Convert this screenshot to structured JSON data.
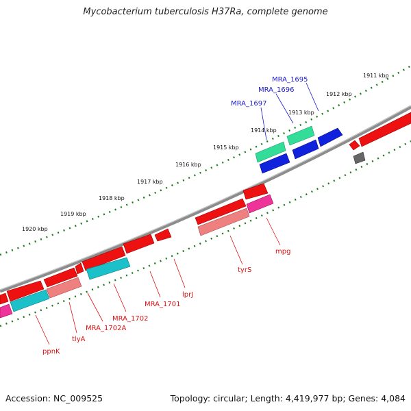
{
  "title": "Mycobacterium tuberculosis H37Ra, complete genome",
  "footer": {
    "accession": "Accession: NC_009525",
    "summary": "Topology: circular; Length: 4,419,977 bp; Genes: 4,084"
  },
  "kbp_labels": [
    "1911 kbp",
    "1912 kbp",
    "1913 kbp",
    "1914 kbp",
    "1915 kbp",
    "1916 kbp",
    "1917 kbp",
    "1918 kbp",
    "1919 kbp",
    "1920 kbp"
  ],
  "gene_labels_top": [
    "MRA_1695",
    "MRA_1696",
    "MRA_1697"
  ],
  "gene_labels_bottom": [
    "mpg",
    "tyrS",
    "lprJ",
    "MRA_1701",
    "MRA_1702",
    "MRA_1702A",
    "tlyA",
    "ppnK"
  ],
  "colors": {
    "backbone": "#8c8c8c",
    "tick": "#1e7a1e",
    "gene_red": "#ee1111",
    "gene_blue": "#1122dd",
    "gene_green": "#33dd99",
    "gene_cyan": "#1cc0c8",
    "gene_pink": "#ee3399",
    "gene_salmon": "#ee8080",
    "gene_gray": "#666666",
    "label_top": "#1a1acc",
    "label_bottom": "#dd1111"
  }
}
